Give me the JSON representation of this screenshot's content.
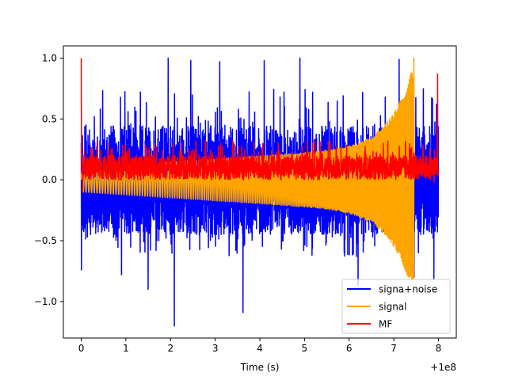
{
  "chart_data": {
    "type": "line",
    "title": "",
    "xlabel": "Time (s)",
    "ylabel": "",
    "x_offset_label": "+1e8",
    "xlim": [
      -0.4,
      8.4
    ],
    "ylim": [
      -1.3,
      1.1
    ],
    "x_ticks": [
      0,
      1,
      2,
      3,
      4,
      5,
      6,
      7,
      8
    ],
    "x_tick_labels": [
      "0",
      "1",
      "2",
      "3",
      "4",
      "5",
      "6",
      "7",
      "8"
    ],
    "y_ticks": [
      1.0,
      0.5,
      0.0,
      -0.5,
      -1.0
    ],
    "y_tick_labels": [
      "1.0",
      "0.5",
      "0.0",
      "−0.5",
      "−1.0"
    ],
    "legend_position": "lower-right",
    "series": [
      {
        "name": "signa+noise",
        "color": "#0000ff",
        "x_range": [
          0,
          8
        ],
        "upper_envelope_typical": 0.45,
        "upper_peak": 1.0,
        "lower_envelope_typical": -0.45,
        "lower_peak": -1.2,
        "gap_band": [
          -0.15,
          -0.02
        ],
        "peaks": [
          {
            "x": 0.0,
            "y": -0.74
          },
          {
            "x": 0.9,
            "y": -0.78
          },
          {
            "x": 1.5,
            "y": -0.9
          },
          {
            "x": 1.95,
            "y": 1.0
          },
          {
            "x": 2.08,
            "y": -1.2
          },
          {
            "x": 2.45,
            "y": 0.98
          },
          {
            "x": 3.1,
            "y": 0.97
          },
          {
            "x": 3.62,
            "y": -1.09
          },
          {
            "x": 4.1,
            "y": 0.98
          },
          {
            "x": 4.9,
            "y": 1.0
          },
          {
            "x": 6.2,
            "y": -0.87
          },
          {
            "x": 7.12,
            "y": 0.99
          },
          {
            "x": 7.45,
            "y": -0.8
          },
          {
            "x": 7.9,
            "y": -0.82
          }
        ]
      },
      {
        "name": "signal",
        "color": "#ffa500",
        "x_range": [
          0,
          7.46
        ],
        "chirp_start_amplitude": 0.1,
        "chirp_peak": 1.0,
        "chirp_end_x": 7.45,
        "min_value": -0.82
      },
      {
        "name": "MF",
        "color": "#ff0000",
        "x_range": [
          0,
          8
        ],
        "baseline": 0.08,
        "band": [
          0.0,
          0.2
        ],
        "peaks": [
          {
            "x": 0.0,
            "y": 1.0
          },
          {
            "x": 0.03,
            "y": -0.1
          },
          {
            "x": 7.98,
            "y": 0.87
          },
          {
            "x": 7.9,
            "y": -0.02
          }
        ]
      }
    ]
  }
}
